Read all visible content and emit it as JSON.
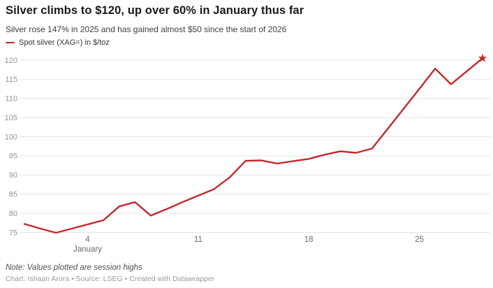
{
  "header": {
    "title": "Silver climbs to $120, up over 60% in January thus far",
    "subtitle": "Silver rose 147% in 2025 and has gained almost $50 since the start of 2026"
  },
  "legend": {
    "label": "Spot silver (XAG=) in $/toz",
    "swatch_color": "#c4282d"
  },
  "footer": {
    "note": "Note: Values plotted are session highs",
    "credit": "Chart: Ishaan Arora • Source: LSEG • Created with Datawrapper"
  },
  "colors": {
    "line": "#c4282d",
    "gridline": "#e4e4e4",
    "y_tick_label": "#949494",
    "x_tick_label": "#6b6b6b",
    "background": "#ffffff"
  },
  "chart_data": {
    "type": "line",
    "title": "Silver climbs to $120, up over 60% in January thus far",
    "subtitle": "Silver rose 147% in 2025 and has gained almost $50 since the start of 2026",
    "xlabel": "January",
    "ylabel": "",
    "legend_position": "top-left",
    "grid": "horizontal",
    "ylim": [
      75,
      120
    ],
    "y_ticks": [
      75,
      80,
      85,
      90,
      95,
      100,
      105,
      110,
      115,
      120
    ],
    "x_range": [
      0,
      29
    ],
    "x_ticks": [
      {
        "day": 4,
        "label": "4"
      },
      {
        "day": 11,
        "label": "11"
      },
      {
        "day": 18,
        "label": "18"
      },
      {
        "day": 25,
        "label": "25"
      }
    ],
    "x_axis_month_label": "January",
    "x_axis_month_label_day": 4,
    "series": [
      {
        "name": "Spot silver (XAG=) in $/toz",
        "color": "#c4282d",
        "end_marker": "star",
        "x": [
          0,
          1,
          2,
          3,
          4,
          5,
          6,
          7,
          8,
          9,
          10,
          11,
          12,
          13,
          14,
          15,
          16,
          17,
          18,
          19,
          20,
          21,
          22,
          23,
          24,
          25,
          26,
          27,
          28,
          29
        ],
        "values": [
          77.2,
          76.0,
          74.9,
          76.0,
          77.1,
          78.2,
          81.8,
          82.9,
          79.4,
          81.1,
          82.9,
          84.6,
          86.3,
          89.4,
          93.7,
          93.8,
          93.0,
          93.6,
          94.2,
          95.3,
          96.2,
          95.8,
          96.9,
          102.1,
          107.3,
          112.5,
          117.8,
          113.7,
          117.1,
          120.5
        ]
      }
    ]
  }
}
